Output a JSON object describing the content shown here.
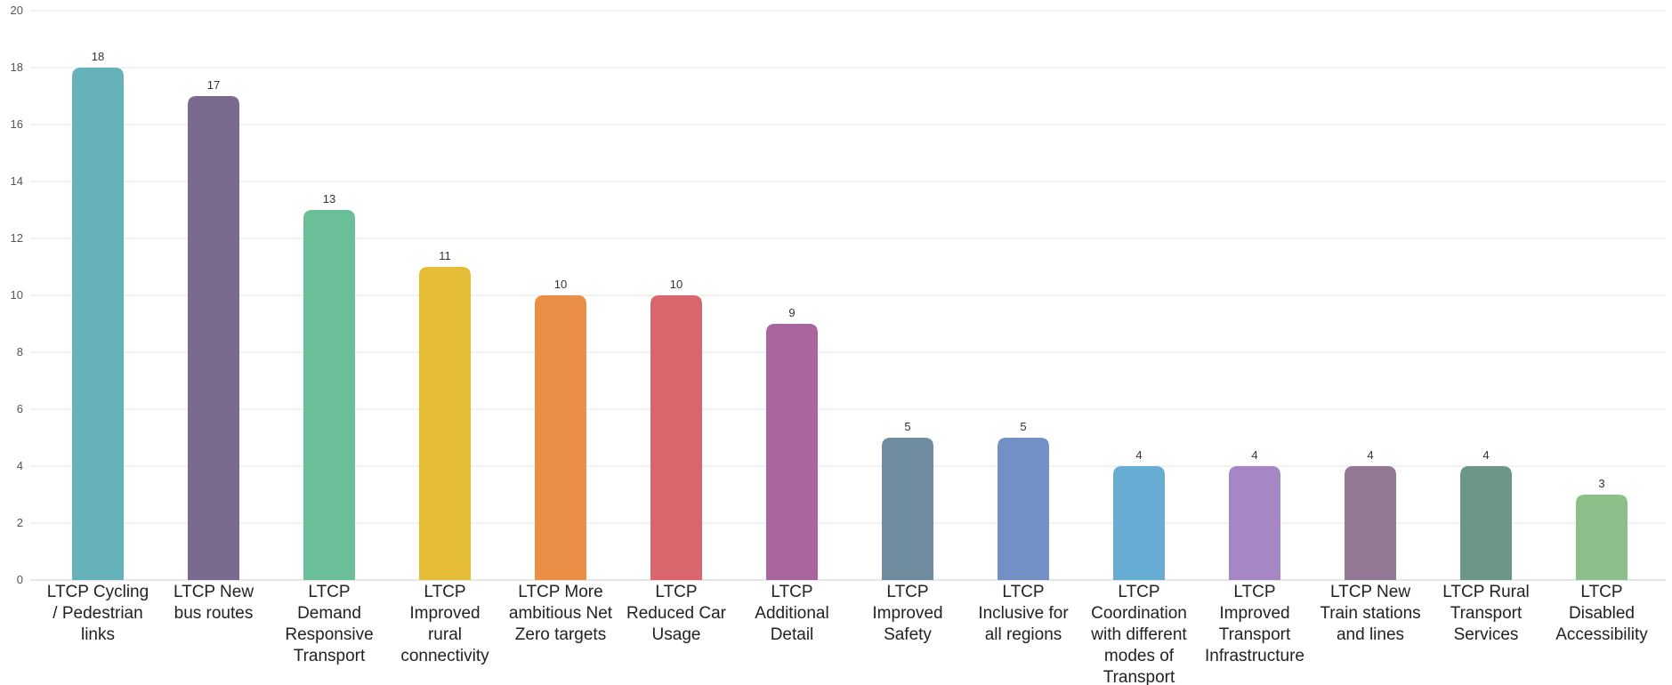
{
  "chart_data": {
    "type": "bar",
    "title": "",
    "xlabel": "",
    "ylabel": "",
    "ylim": [
      0,
      20
    ],
    "yticks": [
      0,
      2,
      4,
      6,
      8,
      10,
      12,
      14,
      16,
      18,
      20
    ],
    "grid": true,
    "categories": [
      "LTCP Cycling / Pedestrian links",
      "LTCP New bus routes",
      "LTCP Demand Responsive Transport",
      "LTCP Improved rural connectivity",
      "LTCP More ambitious Net Zero targets",
      "LTCP Reduced Car Usage",
      "LTCP Additional Detail",
      "LTCP Improved Safety",
      "LTCP Inclusive for all regions",
      "LTCP Coordination with different modes of Transport",
      "LTCP Improved Transport Infrastructure",
      "LTCP New Train stations and lines",
      "LTCP Rural Transport Services",
      "LTCP Disabled Accessibility"
    ],
    "category_lines": [
      [
        "LTCP Cycling",
        "/ Pedestrian",
        "links"
      ],
      [
        "LTCP New",
        "bus routes"
      ],
      [
        "LTCP",
        "Demand",
        "Responsive",
        "Transport"
      ],
      [
        "LTCP",
        "Improved",
        "rural",
        "connectivity"
      ],
      [
        "LTCP More",
        "ambitious Net",
        "Zero targets"
      ],
      [
        "LTCP",
        "Reduced Car",
        "Usage"
      ],
      [
        "LTCP",
        "Additional",
        "Detail"
      ],
      [
        "LTCP",
        "Improved",
        "Safety"
      ],
      [
        "LTCP",
        "Inclusive for",
        "all regions"
      ],
      [
        "LTCP",
        "Coordination",
        "with different",
        "modes of",
        "Transport"
      ],
      [
        "LTCP",
        "Improved",
        "Transport",
        "Infrastructure"
      ],
      [
        "LTCP New",
        "Train stations",
        "and lines"
      ],
      [
        "LTCP Rural",
        "Transport",
        "Services"
      ],
      [
        "LTCP",
        "Disabled",
        "Accessibility"
      ]
    ],
    "values": [
      18,
      17,
      13,
      11,
      10,
      10,
      9,
      5,
      5,
      4,
      4,
      4,
      4,
      3
    ],
    "colors": [
      "#66b2ba",
      "#7a6a8e",
      "#6bbf98",
      "#e6bd36",
      "#ec8f46",
      "#d9666d",
      "#a9659e",
      "#708da0",
      "#7390c6",
      "#67acd2",
      "#a487c4",
      "#937894",
      "#6c9787",
      "#8cc08a"
    ]
  }
}
